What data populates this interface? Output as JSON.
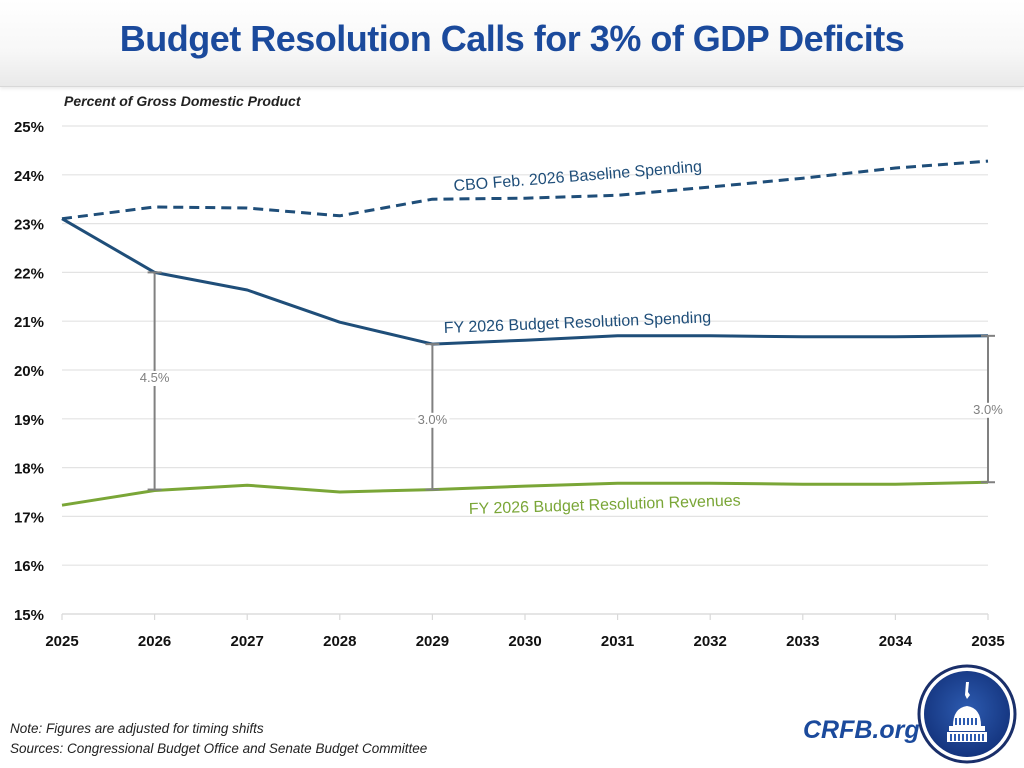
{
  "header": {
    "title": "Budget Resolution Calls for 3% of GDP Deficits"
  },
  "chart_data": {
    "type": "line",
    "title": "Budget Resolution Calls for 3% of GDP Deficits",
    "ylabel": "Percent of Gross Domestic Product",
    "xlabel": "",
    "ylim": [
      15,
      25
    ],
    "grid": true,
    "legend": "inline labels",
    "x": [
      2025,
      2026,
      2027,
      2028,
      2029,
      2030,
      2031,
      2032,
      2033,
      2034,
      2035
    ],
    "x_tick_labels": [
      "2025",
      "2026",
      "2027",
      "2028",
      "2029",
      "2030",
      "2031",
      "2032",
      "2033",
      "2034",
      "2035"
    ],
    "y_ticks": [
      15,
      16,
      17,
      18,
      19,
      20,
      21,
      22,
      23,
      24,
      25
    ],
    "y_tick_labels": [
      "15%",
      "16%",
      "17%",
      "18%",
      "19%",
      "20%",
      "21%",
      "22%",
      "23%",
      "24%",
      "25%"
    ],
    "series": [
      {
        "name": "CBO Feb. 2026 Baseline Spending",
        "style": "dashed",
        "color": "#1f4e79",
        "values": [
          23.1,
          23.34,
          23.32,
          23.16,
          23.5,
          23.52,
          23.58,
          23.75,
          23.93,
          24.14,
          24.28
        ]
      },
      {
        "name": "FY 2026 Budget Resolution Spending",
        "style": "solid",
        "color": "#1f4e79",
        "values": [
          23.1,
          22.0,
          21.64,
          20.98,
          20.53,
          20.61,
          20.7,
          20.7,
          20.68,
          20.68,
          20.7
        ]
      },
      {
        "name": "FY 2026 Budget Resolution Revenues",
        "style": "solid",
        "color": "#7aa637",
        "values": [
          17.23,
          17.53,
          17.64,
          17.5,
          17.55,
          17.62,
          17.68,
          17.68,
          17.66,
          17.66,
          17.7
        ]
      }
    ],
    "annotations": [
      {
        "year": 2026,
        "label": "4.5%",
        "top": 22.0,
        "bottom": 17.55
      },
      {
        "year": 2029,
        "label": "3.0%",
        "top": 20.53,
        "bottom": 17.55
      },
      {
        "year": 2035,
        "label": "3.0%",
        "top": 20.7,
        "bottom": 17.7
      }
    ]
  },
  "footer": {
    "note": "Note: Figures are adjusted for timing shifts",
    "sources": "Sources: Congressional Budget Office and Senate Budget Committee",
    "brand": "CRFB.org"
  },
  "colors": {
    "title": "#1b4a9c",
    "spending": "#1f4e79",
    "revenues": "#7aa637",
    "gap": "#808080",
    "grid": "#e3e3e3"
  }
}
